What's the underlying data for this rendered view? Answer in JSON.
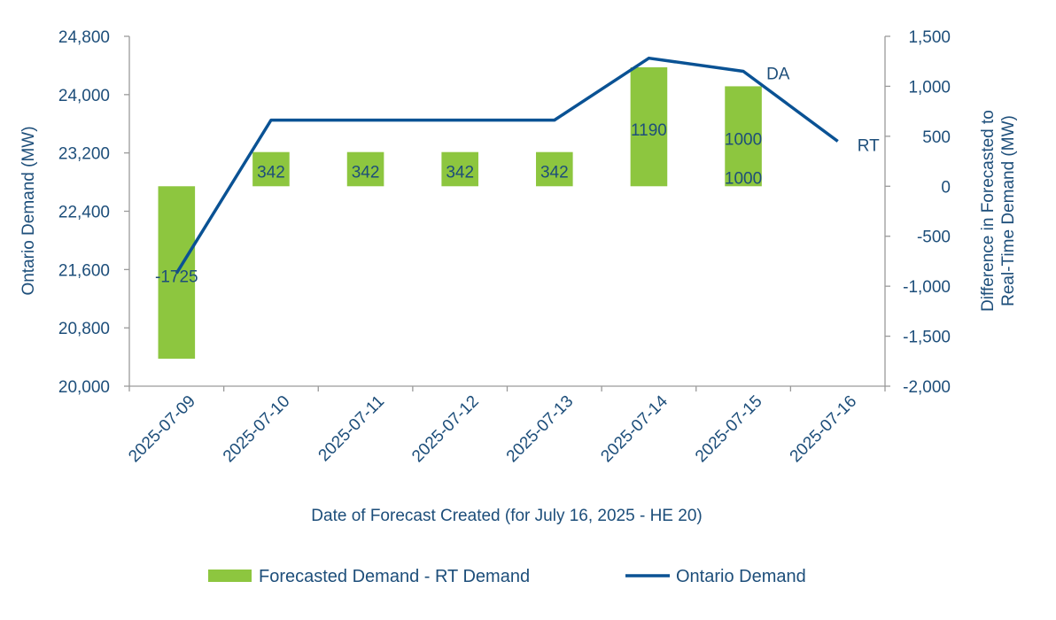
{
  "colors": {
    "bar": "#8dc63f",
    "line": "#0a5294",
    "text": "#1d4e7a",
    "axis": "#9a9a9a"
  },
  "chart_data": {
    "type": "bar+line",
    "xlabel": "Date of Forecast Created (for July 16, 2025 - HE 20)",
    "ylabel_left": "Ontario Demand (MW)",
    "ylabel_right": "Difference in Forecasted to Real-Time Demand (MW)",
    "ylim_left": [
      20000,
      24800
    ],
    "ylim_right": [
      -2000,
      1500
    ],
    "yticks_left": [
      "20,000",
      "20,800",
      "21,600",
      "22,400",
      "23,200",
      "24,000",
      "24,800"
    ],
    "yticks_right": [
      "-2,000",
      "-1,500",
      "-1,000",
      "-500",
      "0",
      "500",
      "1,000",
      "1,500"
    ],
    "yticks_left_values": [
      20000,
      20800,
      21600,
      22400,
      23200,
      24000,
      24800
    ],
    "yticks_right_values": [
      -2000,
      -1500,
      -1000,
      -500,
      0,
      500,
      1000,
      1500
    ],
    "categories": [
      "2025-07-09",
      "2025-07-10",
      "2025-07-11",
      "2025-07-12",
      "2025-07-13",
      "2025-07-14",
      "2025-07-15",
      "2025-07-16"
    ],
    "series": [
      {
        "name": "Forecasted Demand - RT Demand",
        "type": "bar",
        "axis": "right",
        "values": [
          -1725,
          342,
          342,
          342,
          342,
          1190,
          1000,
          null
        ],
        "labels": [
          "-1725",
          "342",
          "342",
          "342",
          "342",
          "1190",
          "1000",
          ""
        ]
      },
      {
        "name": "Ontario Demand",
        "type": "line",
        "axis": "left",
        "values": [
          21550,
          23650,
          23650,
          23650,
          23650,
          24500,
          24320,
          23360
        ]
      }
    ],
    "annotations": [
      {
        "text": "1000",
        "category": "2025-07-15",
        "value": 1000,
        "axis": "right"
      },
      {
        "text": "DA",
        "category": "2025-07-15",
        "value": 24320,
        "axis": "left"
      },
      {
        "text": "RT",
        "category": "2025-07-16",
        "value": 23360,
        "axis": "left"
      }
    ],
    "legend": {
      "position": "bottom",
      "items": [
        "Forecasted Demand - RT Demand",
        "Ontario Demand"
      ]
    },
    "grid": false
  }
}
